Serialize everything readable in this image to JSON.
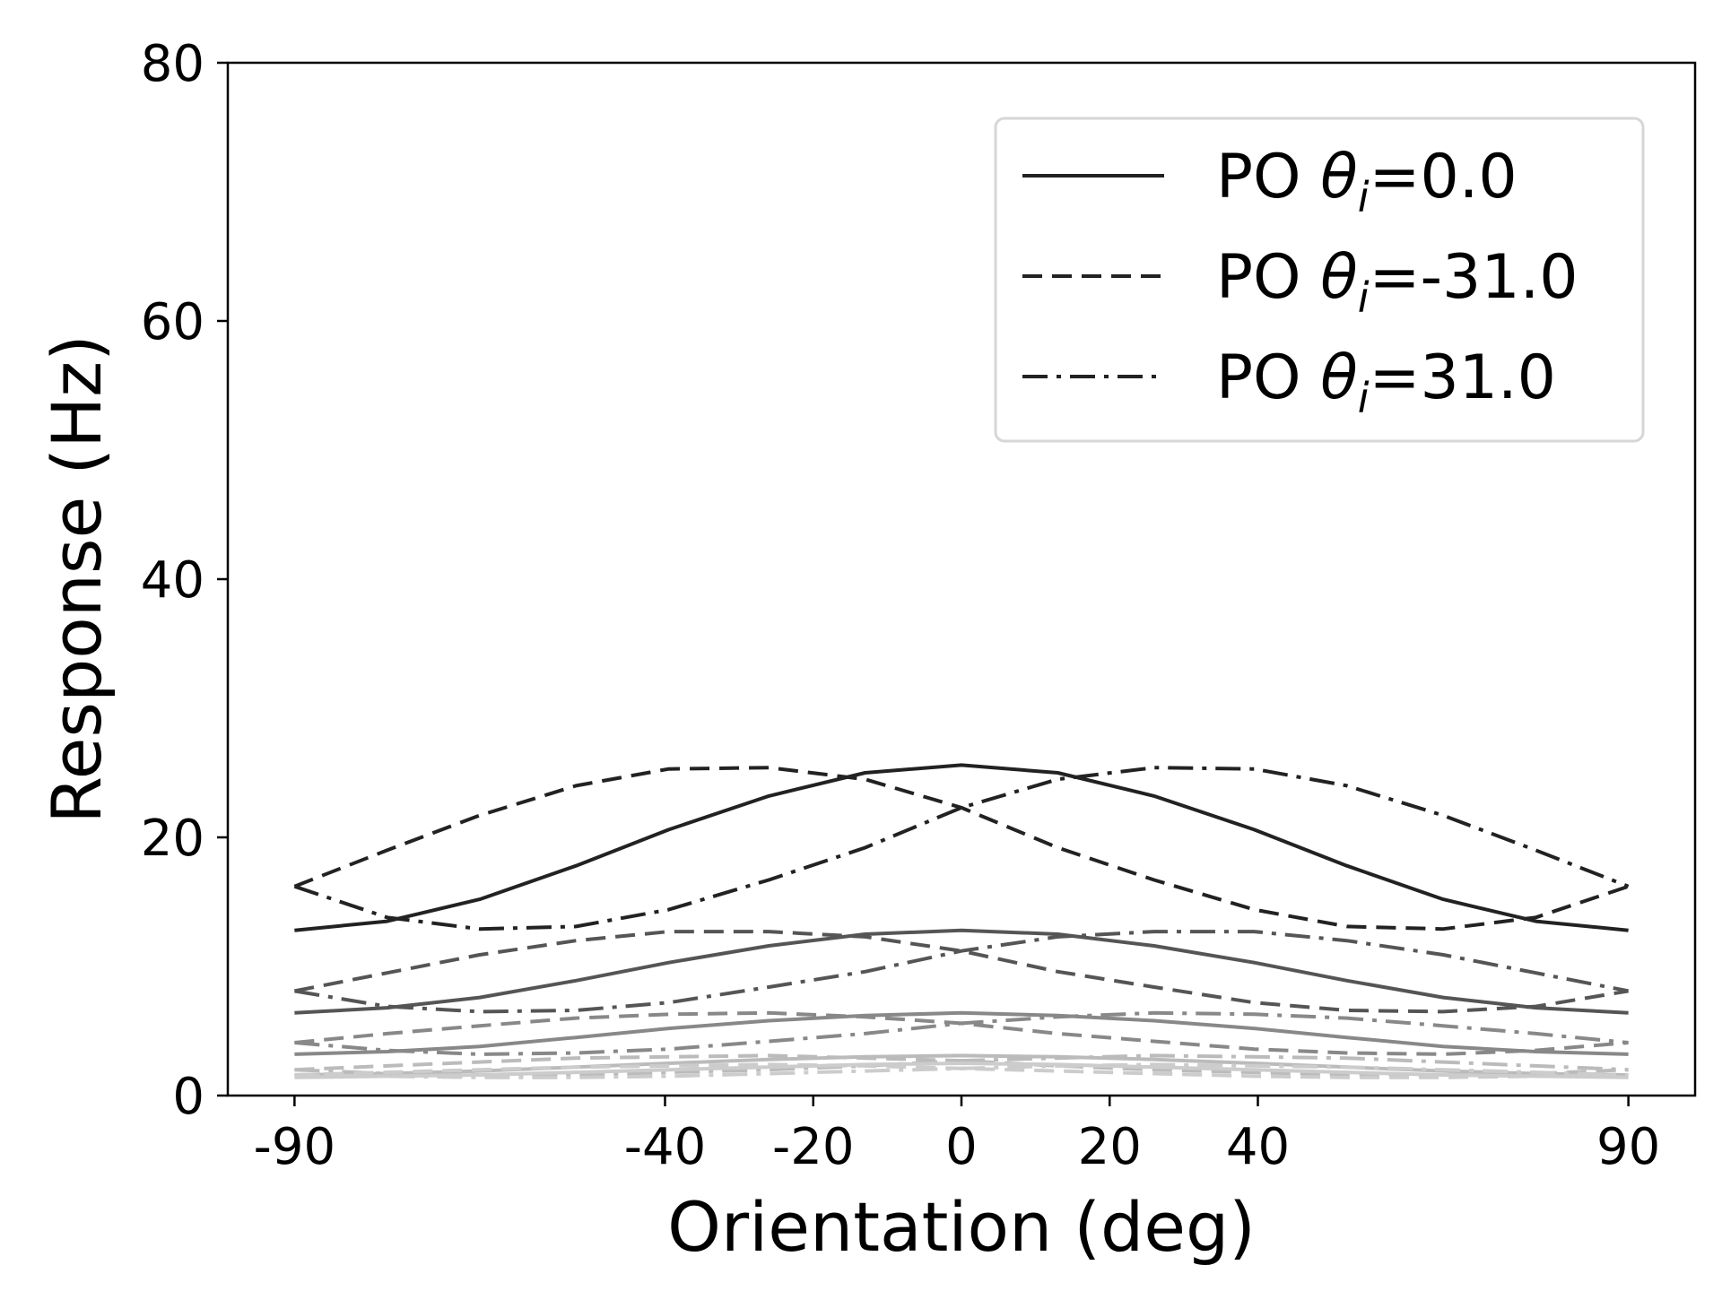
{
  "chart_data": {
    "type": "line",
    "xlabel": "Orientation (deg)",
    "ylabel": "Response (Hz)",
    "xlim": [
      -99,
      99
    ],
    "ylim": [
      0,
      80
    ],
    "xticks": [
      -90,
      -40,
      -20,
      0,
      20,
      40,
      90
    ],
    "xtick_labels": [
      "-90",
      "-40",
      "-20",
      "0",
      "20",
      "40",
      "90"
    ],
    "yticks": [
      0,
      20,
      40,
      60,
      80
    ],
    "ytick_labels": [
      "0",
      "20",
      "40",
      "60",
      "80"
    ],
    "legend": {
      "placement": "top-right",
      "entries": [
        {
          "prefix": "PO ",
          "theta": "θ",
          "sub": "i",
          "suffix": "=0.0",
          "dash": "solid"
        },
        {
          "prefix": "PO ",
          "theta": "θ",
          "sub": "i",
          "suffix": "=-31.0",
          "dash": "dashed"
        },
        {
          "prefix": "PO ",
          "theta": "θ",
          "sub": "i",
          "suffix": "=31.0",
          "dash": "dashdot"
        }
      ]
    },
    "x": [
      -90,
      -77.5,
      -65,
      -52,
      -39.5,
      -26,
      -13,
      0,
      13,
      26,
      39.5,
      52,
      65,
      77.5,
      90
    ],
    "groups": [
      {
        "color": "#222222",
        "scale": 1.0
      },
      {
        "color": "#555555",
        "scale": 0.5
      },
      {
        "color": "#888888",
        "scale": 0.25
      },
      {
        "color": "#bbbbbb",
        "scale": 0.12
      },
      {
        "color": "#cccccc",
        "scale": 0.07
      }
    ],
    "series": [
      {
        "dash": "solid",
        "group": 0,
        "values": [
          12.8,
          13.5,
          15.2,
          17.8,
          20.6,
          23.2,
          25.0,
          25.6,
          25.0,
          23.2,
          20.6,
          17.8,
          15.2,
          13.5,
          12.8
        ]
      },
      {
        "dash": "dashed",
        "group": 0,
        "values": [
          16.2,
          19.0,
          21.7,
          24.0,
          25.3,
          25.4,
          24.5,
          22.3,
          19.2,
          16.7,
          14.4,
          13.1,
          12.9,
          13.8,
          16.2
        ]
      },
      {
        "dash": "dashdot",
        "group": 0,
        "values": [
          16.2,
          13.8,
          12.9,
          13.1,
          14.4,
          16.7,
          19.2,
          22.3,
          24.5,
          25.4,
          25.3,
          24.0,
          21.7,
          19.0,
          16.2
        ]
      },
      {
        "dash": "solid",
        "group": 1,
        "values": [
          6.4,
          6.8,
          7.6,
          8.9,
          10.3,
          11.6,
          12.5,
          12.8,
          12.5,
          11.6,
          10.3,
          8.9,
          7.6,
          6.8,
          6.4
        ]
      },
      {
        "dash": "dashed",
        "group": 1,
        "values": [
          8.1,
          9.5,
          10.9,
          12.0,
          12.7,
          12.7,
          12.3,
          11.2,
          9.6,
          8.4,
          7.2,
          6.6,
          6.5,
          6.9,
          8.1
        ]
      },
      {
        "dash": "dashdot",
        "group": 1,
        "values": [
          8.1,
          6.9,
          6.5,
          6.6,
          7.2,
          8.4,
          9.6,
          11.2,
          12.3,
          12.7,
          12.7,
          12.0,
          10.9,
          9.5,
          8.1
        ]
      },
      {
        "dash": "solid",
        "group": 2,
        "values": [
          3.2,
          3.4,
          3.8,
          4.5,
          5.2,
          5.8,
          6.2,
          6.4,
          6.2,
          5.8,
          5.2,
          4.5,
          3.8,
          3.4,
          3.2
        ]
      },
      {
        "dash": "dashed",
        "group": 2,
        "values": [
          4.1,
          4.8,
          5.4,
          6.0,
          6.3,
          6.4,
          6.1,
          5.6,
          4.8,
          4.2,
          3.6,
          3.3,
          3.2,
          3.5,
          4.1
        ]
      },
      {
        "dash": "dashdot",
        "group": 2,
        "values": [
          4.1,
          3.5,
          3.2,
          3.3,
          3.6,
          4.2,
          4.8,
          5.6,
          6.1,
          6.4,
          6.3,
          6.0,
          5.4,
          4.8,
          4.1
        ]
      },
      {
        "dash": "solid",
        "group": 3,
        "values": [
          1.6,
          1.7,
          1.9,
          2.2,
          2.5,
          2.8,
          3.0,
          3.1,
          3.0,
          2.8,
          2.5,
          2.2,
          1.9,
          1.7,
          1.6
        ]
      },
      {
        "dash": "dashed",
        "group": 3,
        "values": [
          2.0,
          2.3,
          2.6,
          2.9,
          3.0,
          3.1,
          2.9,
          2.7,
          2.3,
          2.0,
          1.8,
          1.6,
          1.6,
          1.7,
          2.0
        ]
      },
      {
        "dash": "dashdot",
        "group": 3,
        "values": [
          2.0,
          1.7,
          1.6,
          1.6,
          1.8,
          2.0,
          2.3,
          2.7,
          2.9,
          3.1,
          3.0,
          2.9,
          2.6,
          2.3,
          2.0
        ]
      },
      {
        "dash": "solid",
        "group": 4,
        "values": [
          1.4,
          1.5,
          1.6,
          1.8,
          2.0,
          2.2,
          2.4,
          2.5,
          2.4,
          2.2,
          2.0,
          1.8,
          1.6,
          1.5,
          1.4
        ]
      },
      {
        "dash": "dashed",
        "group": 4,
        "values": [
          1.6,
          1.8,
          2.0,
          2.2,
          2.3,
          2.4,
          2.3,
          2.1,
          1.9,
          1.7,
          1.5,
          1.4,
          1.4,
          1.5,
          1.6
        ]
      },
      {
        "dash": "dashdot",
        "group": 4,
        "values": [
          1.6,
          1.5,
          1.4,
          1.4,
          1.5,
          1.7,
          1.9,
          2.1,
          2.3,
          2.4,
          2.3,
          2.2,
          2.0,
          1.8,
          1.6
        ]
      }
    ]
  }
}
